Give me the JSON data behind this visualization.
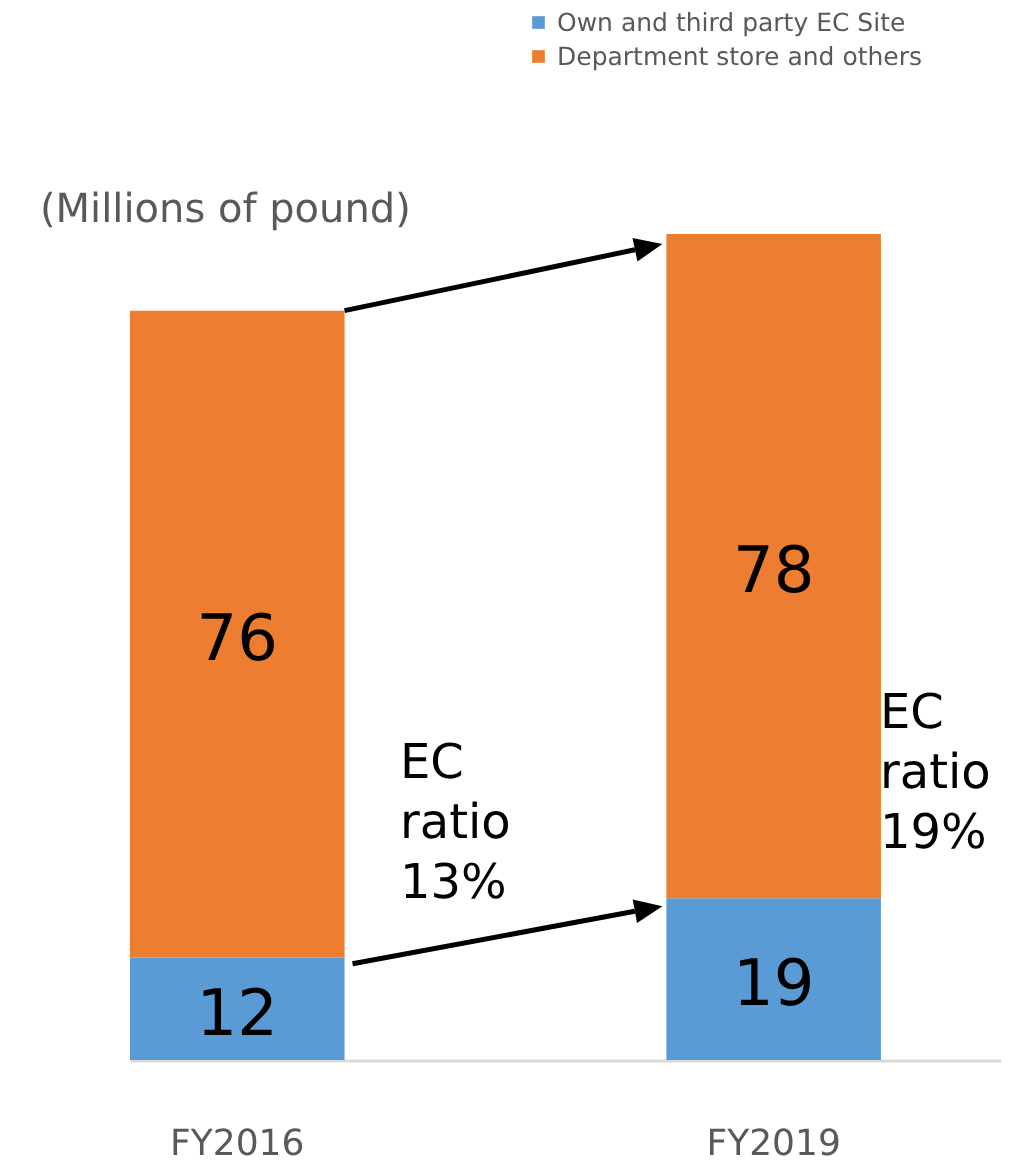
{
  "chart_data": {
    "type": "bar",
    "stacked": true,
    "data_labels": true,
    "legend": "top right",
    "categories": [
      "FY2016",
      "FY2019"
    ],
    "series": [
      {
        "name": "Own and third party EC Site",
        "color": "#5b9bd5",
        "values": [
          12,
          19
        ]
      },
      {
        "name": "Department store and others",
        "color": "#ed7d31",
        "values": [
          76,
          78
        ]
      }
    ],
    "annotations": [
      "(Millions of pound)",
      "EC ratio 13%",
      "EC ratio 19%"
    ]
  }
}
